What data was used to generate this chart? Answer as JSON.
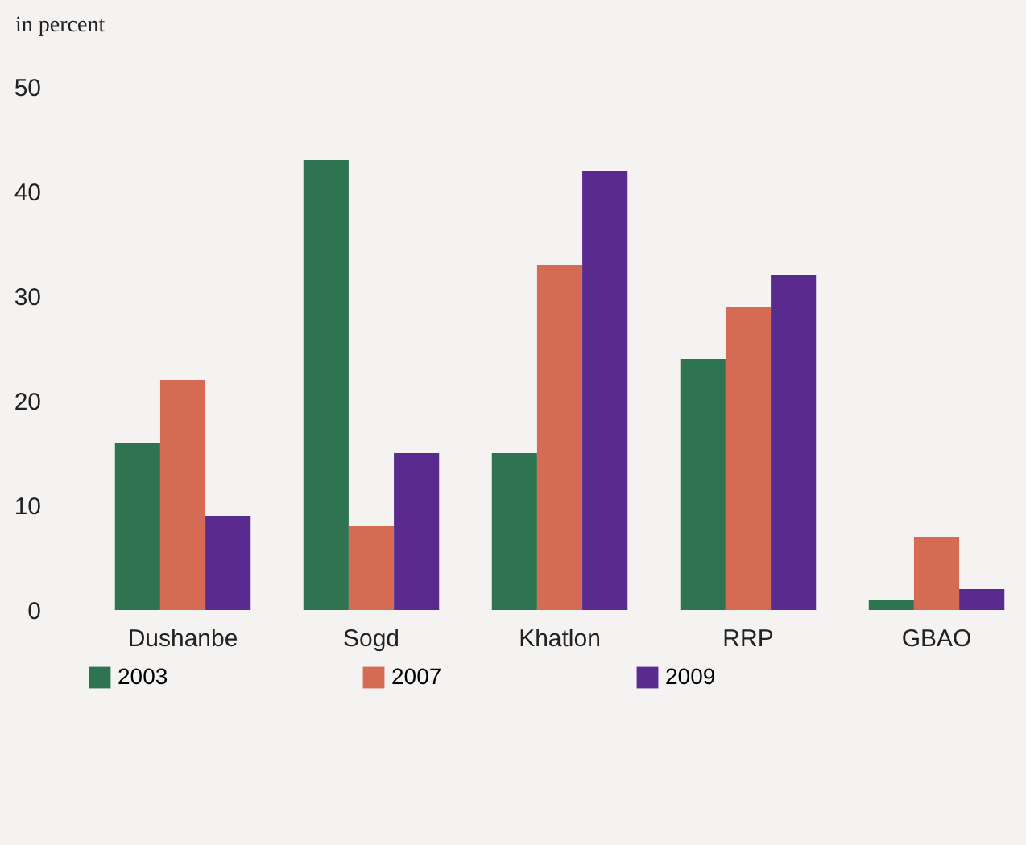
{
  "chart_data": {
    "type": "bar",
    "ylabel": "in percent",
    "categories": [
      "Dushanbe",
      "Sogd",
      "Khatlon",
      "RRP",
      "GBAO"
    ],
    "series": [
      {
        "name": "2003",
        "color": "#2e7450",
        "values": [
          16,
          43,
          15,
          24,
          1
        ]
      },
      {
        "name": "2007",
        "color": "#d66b55",
        "values": [
          22,
          8,
          33,
          29,
          7
        ]
      },
      {
        "name": "2009",
        "color": "#5a2b8e",
        "values": [
          9,
          15,
          42,
          32,
          2
        ]
      }
    ],
    "ylim": [
      0,
      50
    ],
    "yticks": [
      0,
      10,
      20,
      30,
      40,
      50
    ],
    "grid": false,
    "legend": "bottom left"
  }
}
